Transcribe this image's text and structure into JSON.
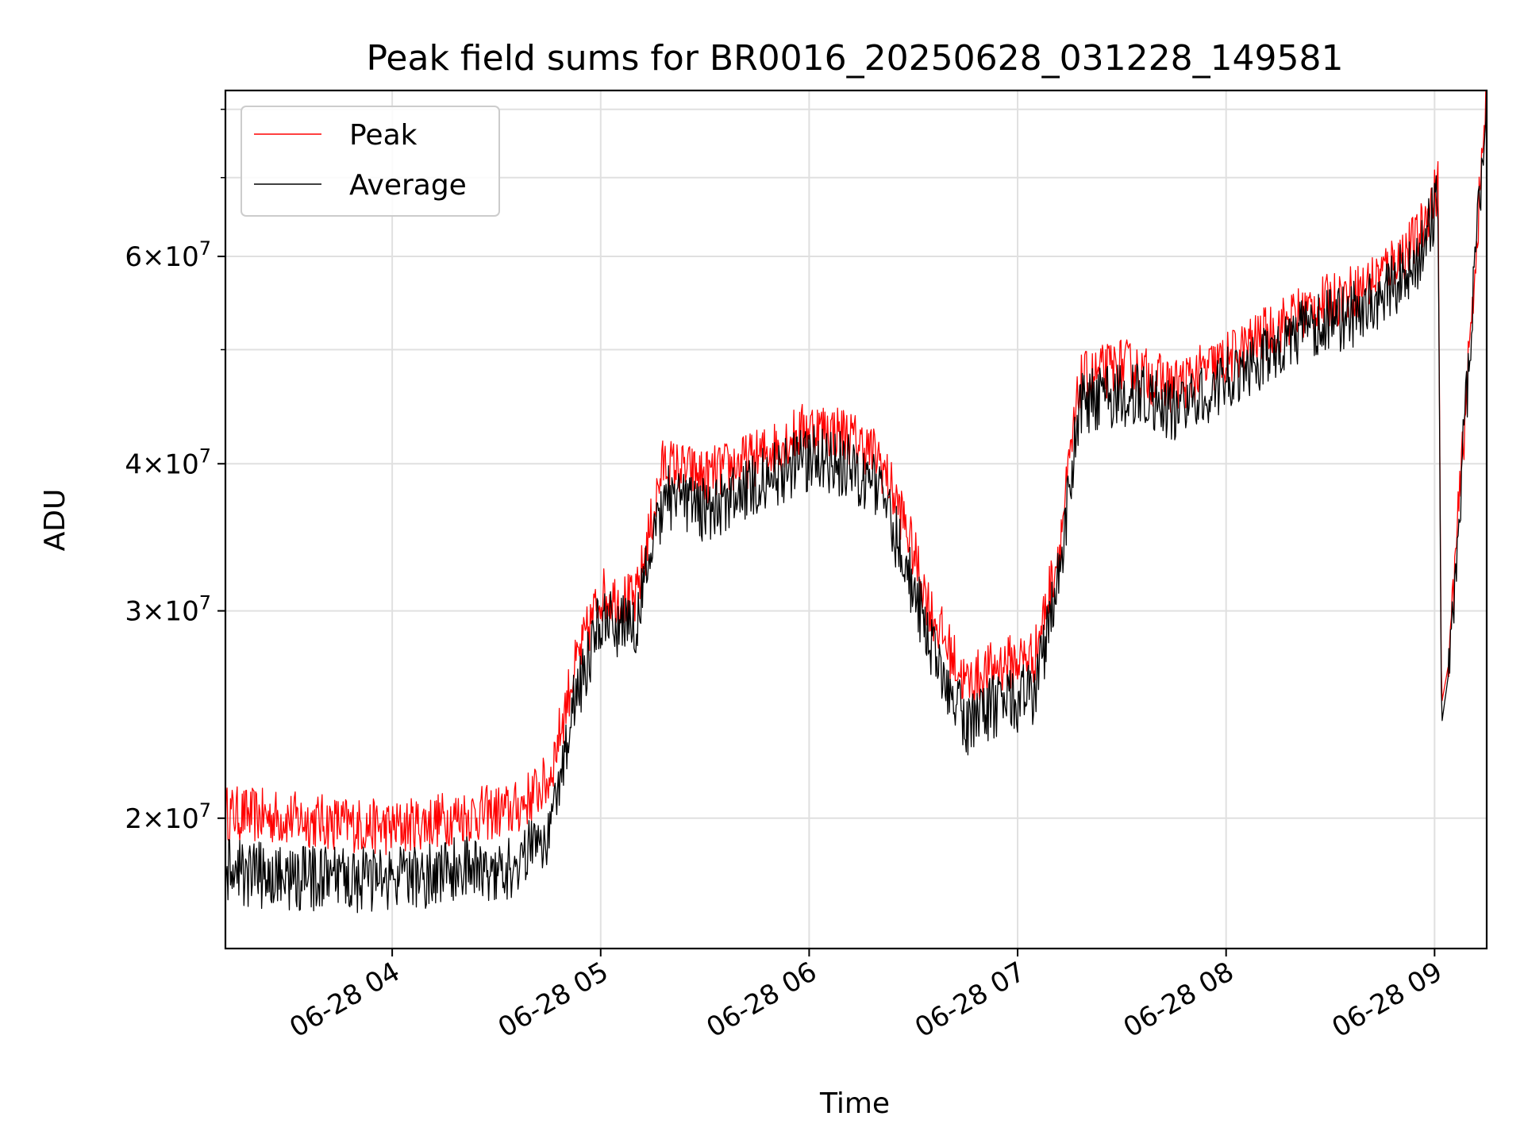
{
  "chart_data": {
    "type": "line",
    "title": "Peak field sums for BR0016_20250628_031228_149581",
    "xlabel": "Time",
    "ylabel": "ADU",
    "yscale": "log",
    "grid": true,
    "legend_position": "top-left",
    "xlim": [
      "2025-06-28 03:12",
      "2025-06-28 09:15"
    ],
    "ylim": [
      15500000,
      83000000
    ],
    "x_ticks": [
      {
        "value": "2025-06-28 04:00",
        "label": "06-28 04"
      },
      {
        "value": "2025-06-28 05:00",
        "label": "06-28 05"
      },
      {
        "value": "2025-06-28 06:00",
        "label": "06-28 06"
      },
      {
        "value": "2025-06-28 07:00",
        "label": "06-28 07"
      },
      {
        "value": "2025-06-28 08:00",
        "label": "06-28 08"
      },
      {
        "value": "2025-06-28 09:00",
        "label": "06-28 09"
      }
    ],
    "y_major_ticks": [
      {
        "value": 20000000,
        "mantissa": "2",
        "exponent": "7"
      },
      {
        "value": 30000000,
        "mantissa": "3",
        "exponent": "7"
      },
      {
        "value": 40000000,
        "mantissa": "4",
        "exponent": "7"
      },
      {
        "value": 60000000,
        "mantissa": "6",
        "exponent": "7"
      }
    ],
    "y_minor_ticks": [
      50000000,
      70000000,
      80000000
    ],
    "series": [
      {
        "name": "Peak",
        "color": "#ff0000",
        "noise": 0.055,
        "x": [
          "2025-06-28 03:12",
          "2025-06-28 03:30",
          "2025-06-28 04:00",
          "2025-06-28 04:20",
          "2025-06-28 04:35",
          "2025-06-28 04:45",
          "2025-06-28 04:52",
          "2025-06-28 05:00",
          "2025-06-28 05:10",
          "2025-06-28 05:18",
          "2025-06-28 05:30",
          "2025-06-28 05:45",
          "2025-06-28 06:00",
          "2025-06-28 06:10",
          "2025-06-28 06:20",
          "2025-06-28 06:27",
          "2025-06-28 06:35",
          "2025-06-28 06:45",
          "2025-06-28 06:55",
          "2025-06-28 07:05",
          "2025-06-28 07:12",
          "2025-06-28 07:18",
          "2025-06-28 07:30",
          "2025-06-28 07:45",
          "2025-06-28 08:00",
          "2025-06-28 08:20",
          "2025-06-28 08:40",
          "2025-06-28 08:55",
          "2025-06-28 09:01",
          "2025-06-28 09:02",
          "2025-06-28 09:04",
          "2025-06-28 09:15"
        ],
        "values": [
          20200000,
          20000000,
          19600000,
          20100000,
          20300000,
          21500000,
          26500000,
          31000000,
          30500000,
          40000000,
          39000000,
          40500000,
          43000000,
          42500000,
          40500000,
          36000000,
          30000000,
          26000000,
          27000000,
          27500000,
          34000000,
          47000000,
          48500000,
          46500000,
          49000000,
          53500000,
          56500000,
          62000000,
          69000000,
          25000000,
          27000000,
          83000000
        ]
      },
      {
        "name": "Average",
        "color": "#000000",
        "noise": 0.065,
        "x": [
          "2025-06-28 03:12",
          "2025-06-28 03:30",
          "2025-06-28 04:00",
          "2025-06-28 04:20",
          "2025-06-28 04:35",
          "2025-06-28 04:45",
          "2025-06-28 04:52",
          "2025-06-28 05:00",
          "2025-06-28 05:10",
          "2025-06-28 05:18",
          "2025-06-28 05:30",
          "2025-06-28 05:45",
          "2025-06-28 06:00",
          "2025-06-28 06:10",
          "2025-06-28 06:20",
          "2025-06-28 06:27",
          "2025-06-28 06:35",
          "2025-06-28 06:45",
          "2025-06-28 06:55",
          "2025-06-28 07:05",
          "2025-06-28 07:12",
          "2025-06-28 07:18",
          "2025-06-28 07:30",
          "2025-06-28 07:45",
          "2025-06-28 08:00",
          "2025-06-28 08:20",
          "2025-06-28 08:40",
          "2025-06-28 08:55",
          "2025-06-28 09:01",
          "2025-06-28 09:02",
          "2025-06-28 09:04",
          "2025-06-28 09:15"
        ],
        "values": [
          18000000,
          17800000,
          17700000,
          18100000,
          18200000,
          19500000,
          24800000,
          29500000,
          29000000,
          37500000,
          36500000,
          38500000,
          40500000,
          40000000,
          38000000,
          33500000,
          28000000,
          24000000,
          25000000,
          25500000,
          32000000,
          45000000,
          46000000,
          44500000,
          47000000,
          51500000,
          54000000,
          59500000,
          67000000,
          24000000,
          26500000,
          82500000
        ]
      }
    ]
  }
}
